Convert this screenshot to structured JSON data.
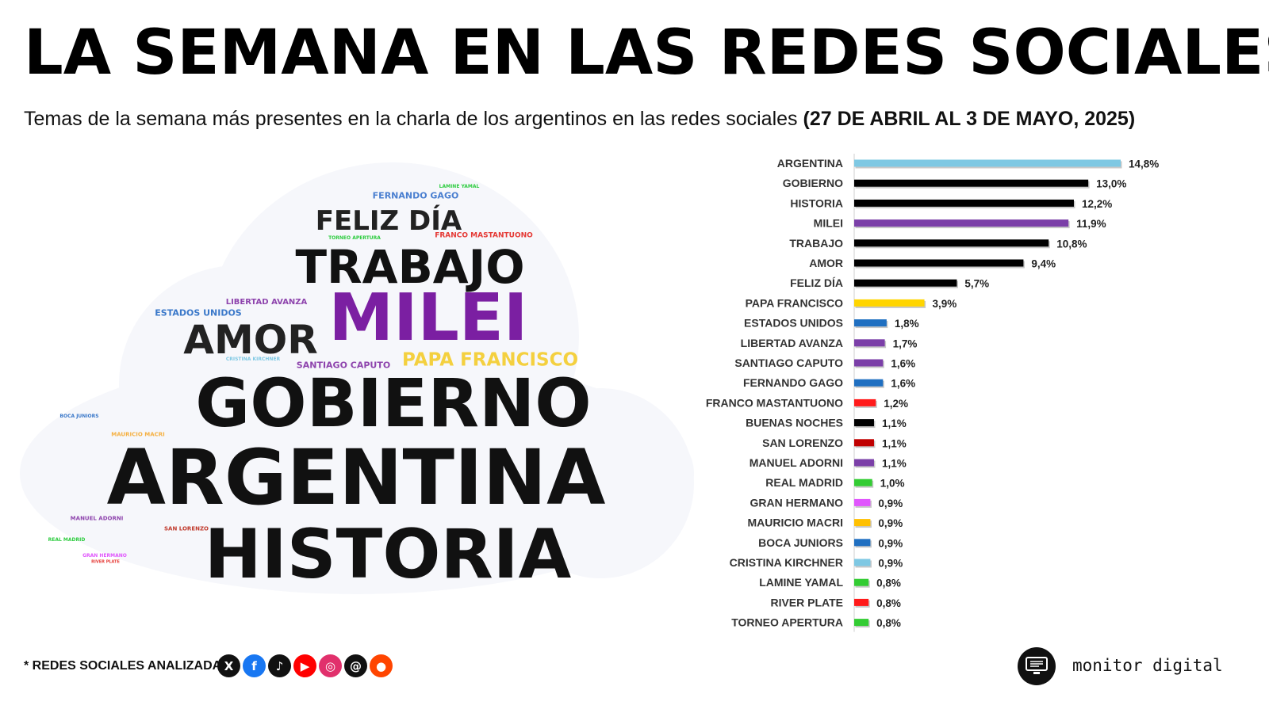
{
  "header": {
    "title": "LA SEMANA EN LAS REDES SOCIALES",
    "subtitle": "Temas de la semana más presentes en la charla de los argentinos en las redes sociales",
    "date_range": "(27 DE ABRIL AL 3 DE MAYO, 2025)"
  },
  "word_cloud": [
    {
      "word": "FERNANDO GAGO",
      "color": "#4a7fd0"
    },
    {
      "word": "LAMINE YAMAL",
      "color": "#2ecc40"
    },
    {
      "word": "FELIZ DÍA",
      "color": "#222222"
    },
    {
      "word": "TORNEO APERTURA",
      "color": "#2ecc40"
    },
    {
      "word": "FRANCO MASTANTUONO",
      "color": "#e53935"
    },
    {
      "word": "TRABAJO",
      "color": "#111111"
    },
    {
      "word": "LIBERTAD AVANZA",
      "color": "#8e44ad"
    },
    {
      "word": "ESTADOS UNIDOS",
      "color": "#3a78c9"
    },
    {
      "word": "MILEI",
      "color": "#7b1fa2"
    },
    {
      "word": "AMOR",
      "color": "#222222"
    },
    {
      "word": "CRISTINA KIRCHNER",
      "color": "#7ec8e3"
    },
    {
      "word": "SANTIAGO CAPUTO",
      "color": "#8e44ad"
    },
    {
      "word": "PAPA FRANCISCO",
      "color": "#f4d03f"
    },
    {
      "word": "GOBIERNO",
      "color": "#111111"
    },
    {
      "word": "BOCA JUNIORS",
      "color": "#3a78c9"
    },
    {
      "word": "MAURICIO MACRI",
      "color": "#f5b041"
    },
    {
      "word": "ARGENTINA",
      "color": "#111111"
    },
    {
      "word": "MANUEL ADORNI",
      "color": "#8e44ad"
    },
    {
      "word": "SAN LORENZO",
      "color": "#c0392b"
    },
    {
      "word": "REAL MADRID",
      "color": "#2ecc40"
    },
    {
      "word": "GRAN HERMANO",
      "color": "#e056fd"
    },
    {
      "word": "RIVER PLATE",
      "color": "#e53935"
    },
    {
      "word": "HISTORIA",
      "color": "#111111"
    }
  ],
  "chart_data": {
    "type": "bar",
    "orientation": "horizontal",
    "categories": [
      "ARGENTINA",
      "GOBIERNO",
      "HISTORIA",
      "MILEI",
      "TRABAJO",
      "AMOR",
      "FELIZ DÍA",
      "PAPA FRANCISCO",
      "ESTADOS UNIDOS",
      "LIBERTAD AVANZA",
      "SANTIAGO CAPUTO",
      "FERNANDO GAGO",
      "FRANCO MASTANTUONO",
      "BUENAS NOCHES",
      "SAN LORENZO",
      "MANUEL ADORNI",
      "REAL MADRID",
      "GRAN HERMANO",
      "MAURICIO MACRI",
      "BOCA JUNIORS",
      "CRISTINA KIRCHNER",
      "LAMINE YAMAL",
      "RIVER PLATE",
      "TORNEO APERTURA"
    ],
    "values": [
      14.8,
      13.0,
      12.2,
      11.9,
      10.8,
      9.4,
      5.7,
      3.9,
      1.8,
      1.7,
      1.6,
      1.6,
      1.2,
      1.1,
      1.1,
      1.1,
      1.0,
      0.9,
      0.9,
      0.9,
      0.9,
      0.8,
      0.8,
      0.8
    ],
    "labels": [
      "14,8%",
      "13,0%",
      "12,2%",
      "11,9%",
      "10,8%",
      "9,4%",
      "5,7%",
      "3,9%",
      "1,8%",
      "1,7%",
      "1,6%",
      "1,6%",
      "1,2%",
      "1,1%",
      "1,1%",
      "1,1%",
      "1,0%",
      "0,9%",
      "0,9%",
      "0,9%",
      "0,9%",
      "0,8%",
      "0,8%",
      "0,8%"
    ],
    "colors": [
      "#7ec8e3",
      "#000000",
      "#000000",
      "#7b3fa8",
      "#000000",
      "#000000",
      "#000000",
      "#ffd500",
      "#1f6fc1",
      "#7b3fa8",
      "#7b3fa8",
      "#1f6fc1",
      "#ff1a1a",
      "#000000",
      "#c00000",
      "#7b3fa8",
      "#33cc33",
      "#e056fd",
      "#ffc000",
      "#1f6fc1",
      "#7ec8e3",
      "#33cc33",
      "#ff1a1a",
      "#33cc33"
    ],
    "unit": "%",
    "xlim": [
      0,
      14.8
    ],
    "grid": false,
    "legend": "none"
  },
  "footer": {
    "note": "* REDES SOCIALES ANALIZADAS",
    "networks": [
      {
        "name": "x-icon",
        "glyph": "X",
        "color": "#111111"
      },
      {
        "name": "facebook-icon",
        "glyph": "f",
        "color": "#1877f2"
      },
      {
        "name": "tiktok-icon",
        "glyph": "♪",
        "color": "#111111"
      },
      {
        "name": "youtube-icon",
        "glyph": "▶",
        "color": "#ff0000"
      },
      {
        "name": "instagram-icon",
        "glyph": "◎",
        "color": "#e1306c"
      },
      {
        "name": "threads-icon",
        "glyph": "@",
        "color": "#111111"
      },
      {
        "name": "reddit-icon",
        "glyph": "●",
        "color": "#ff4500"
      }
    ],
    "brand": "monitor digital"
  }
}
